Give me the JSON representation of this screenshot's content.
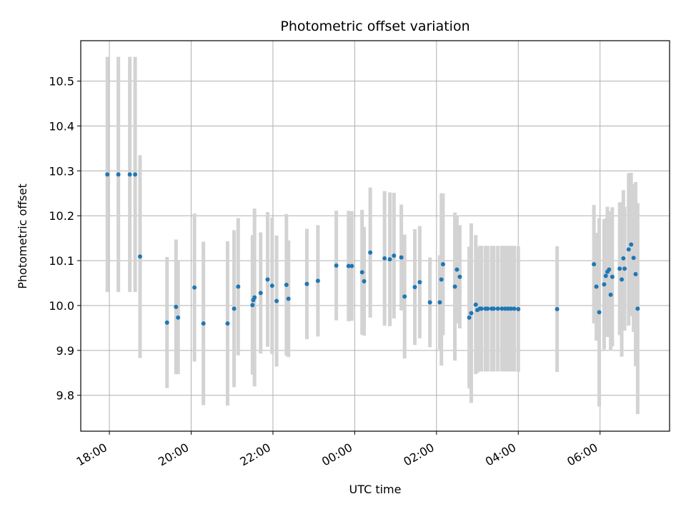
{
  "chart_data": {
    "type": "scatter",
    "title": "Photometric offset variation",
    "xlabel": "UTC time",
    "ylabel": "Photometric offset",
    "x_ticks": [
      "18:00",
      "20:00",
      "22:00",
      "00:00",
      "02:00",
      "04:00",
      "06:00"
    ],
    "y_ticks": [
      "9.8",
      "9.9",
      "10.0",
      "10.1",
      "10.2",
      "10.3",
      "10.4",
      "10.5"
    ],
    "x_unit": "hours since 18:00 UTC",
    "xlim": [
      -0.7,
      13.7
    ],
    "ylim": [
      9.72,
      10.59
    ],
    "grid": true,
    "marker_color": "#1f77b4",
    "errorbar_color": "#d3d3d3",
    "series": [
      {
        "x": [
          -0.05,
          0.22,
          0.5,
          0.63,
          0.75,
          1.41,
          1.63,
          1.68,
          2.08,
          2.3,
          2.89,
          3.05,
          3.15,
          3.5,
          3.52,
          3.55,
          3.7,
          3.87,
          3.98,
          4.09,
          4.33,
          4.38,
          4.83,
          5.1,
          5.55,
          5.85,
          5.93,
          6.18,
          6.23,
          6.38,
          6.73,
          6.86,
          6.96,
          7.14,
          7.22,
          7.47,
          7.59,
          7.84,
          8.08,
          8.12,
          8.16,
          8.45,
          8.5,
          8.57,
          8.8,
          8.85,
          8.96,
          9.0,
          9.06,
          9.1,
          9.2,
          9.25,
          9.35,
          9.4,
          9.5,
          9.6,
          9.68,
          9.75,
          9.82,
          9.9,
          10.0,
          10.95,
          11.85,
          11.91,
          11.98,
          12.1,
          12.14,
          12.18,
          12.22,
          12.26,
          12.3,
          12.48,
          12.53,
          12.57,
          12.6,
          12.7,
          12.76,
          12.82,
          12.87,
          12.92
        ],
        "y": [
          10.292,
          10.292,
          10.292,
          10.292,
          10.109,
          9.962,
          9.997,
          9.973,
          10.04,
          9.96,
          9.96,
          9.993,
          10.042,
          10.001,
          10.012,
          10.018,
          10.028,
          10.058,
          10.044,
          10.01,
          10.046,
          10.015,
          10.048,
          10.055,
          10.089,
          10.088,
          10.088,
          10.074,
          10.054,
          10.118,
          10.105,
          10.103,
          10.111,
          10.107,
          10.02,
          10.041,
          10.052,
          10.007,
          10.007,
          10.058,
          10.092,
          10.042,
          10.08,
          10.064,
          9.973,
          9.983,
          10.002,
          9.99,
          9.993,
          9.993,
          9.993,
          9.993,
          9.993,
          9.993,
          9.993,
          9.993,
          9.993,
          9.993,
          9.993,
          9.993,
          9.992,
          9.992,
          10.092,
          10.042,
          9.985,
          10.047,
          10.066,
          10.075,
          10.08,
          10.024,
          10.064,
          10.082,
          10.058,
          10.105,
          10.082,
          10.125,
          10.136,
          10.106,
          10.07,
          9.993
        ],
        "yerr": [
          0.262,
          0.262,
          0.262,
          0.262,
          0.226,
          0.146,
          0.15,
          0.126,
          0.165,
          0.182,
          0.183,
          0.175,
          0.153,
          0.155,
          0.145,
          0.198,
          0.135,
          0.15,
          0.152,
          0.146,
          0.158,
          0.13,
          0.123,
          0.124,
          0.122,
          0.123,
          0.122,
          0.139,
          0.121,
          0.145,
          0.15,
          0.149,
          0.14,
          0.118,
          0.138,
          0.129,
          0.125,
          0.1,
          0.105,
          0.192,
          0.158,
          0.165,
          0.12,
          0.115,
          0.158,
          0.2,
          0.155,
          0.14,
          0.14,
          0.14,
          0.14,
          0.14,
          0.14,
          0.14,
          0.14,
          0.14,
          0.14,
          0.14,
          0.14,
          0.14,
          0.14,
          0.14,
          0.132,
          0.12,
          0.21,
          0.145,
          0.128,
          0.145,
          0.13,
          0.125,
          0.155,
          0.148,
          0.172,
          0.152,
          0.138,
          0.17,
          0.16,
          0.165,
          0.205,
          0.235
        ]
      }
    ]
  }
}
